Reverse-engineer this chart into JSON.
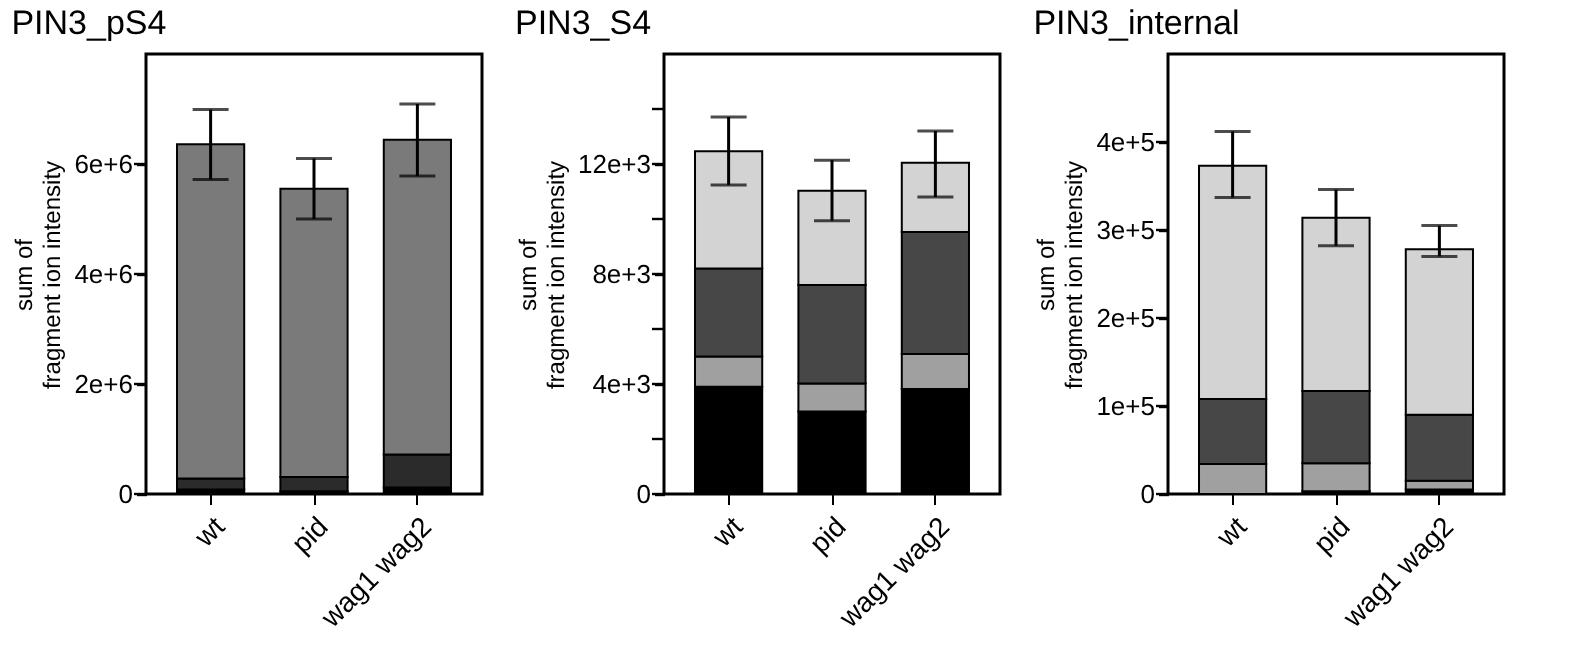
{
  "chart_data": [
    {
      "type": "bar",
      "title": "PIN3_pS4",
      "ylabel": "sum of\nfragment ion intensity",
      "categories": [
        "wt",
        "pid",
        "wag1 wag2"
      ],
      "stacked": true,
      "grid": false,
      "legend": false,
      "ylim": [
        0,
        8000000
      ],
      "yticks": [
        0,
        {
          "value": 2000000,
          "label": "2e+6"
        },
        {
          "value": 4000000,
          "label": "4e+6"
        },
        {
          "value": 6000000,
          "label": "6e+6"
        }
      ],
      "series": [
        {
          "color": "#000000",
          "values": [
            80000,
            50000,
            120000
          ]
        },
        {
          "color": "#2b2b2b",
          "values": [
            200000,
            260000,
            600000
          ]
        },
        {
          "color": "#7a7a7a",
          "values": [
            6080000,
            5240000,
            5720000
          ],
          "errors": [
            [
              5720000,
              6990000
            ],
            [
              5000000,
              6100000
            ],
            [
              5780000,
              7090000
            ]
          ]
        }
      ]
    },
    {
      "type": "bar",
      "title": "PIN3_S4",
      "ylabel": "sum of\nfragment ion intensity",
      "categories": [
        "wt",
        "pid",
        "wag1 wag2"
      ],
      "stacked": true,
      "grid": false,
      "legend": false,
      "ylim": [
        0,
        16000
      ],
      "yticks": [
        0,
        {
          "value": 2000,
          "label": null
        },
        {
          "value": 4000,
          "label": "4e+3"
        },
        {
          "value": 6000,
          "label": null
        },
        {
          "value": 8000,
          "label": "8e+3"
        },
        {
          "value": 10000,
          "label": null
        },
        {
          "value": 12000,
          "label": "12e+3"
        },
        {
          "value": 14000,
          "label": null
        }
      ],
      "series": [
        {
          "color": "#000000",
          "values": [
            3900,
            3000,
            3820
          ]
        },
        {
          "color": "#a0a0a0",
          "values": [
            1100,
            1020,
            1270
          ]
        },
        {
          "color": "#474747",
          "values": [
            3200,
            3580,
            4440
          ]
        },
        {
          "color": "#d3d3d3",
          "values": [
            4260,
            3430,
            2520
          ],
          "errors": [
            [
              11240,
              13710
            ],
            [
              9940,
              12140
            ],
            [
              10800,
              13200
            ]
          ]
        }
      ]
    },
    {
      "type": "bar",
      "title": "PIN3_internal",
      "ylabel": "sum of\nfragment ion intensity",
      "categories": [
        "wt",
        "pid",
        "wag1 wag2"
      ],
      "stacked": true,
      "grid": false,
      "legend": false,
      "ylim": [
        0,
        500000
      ],
      "yticks": [
        0,
        {
          "value": 100000,
          "label": "1e+5"
        },
        {
          "value": 200000,
          "label": "2e+5"
        },
        {
          "value": 300000,
          "label": "3e+5"
        },
        {
          "value": 400000,
          "label": "4e+5"
        }
      ],
      "series": [
        {
          "color": "#000000",
          "values": [
            null,
            3000,
            5000
          ]
        },
        {
          "color": "#a0a0a0",
          "values": [
            34000,
            32000,
            10000
          ]
        },
        {
          "color": "#474747",
          "values": [
            74000,
            82000,
            75000
          ]
        },
        {
          "color": "#d3d3d3",
          "values": [
            265000,
            197000,
            188000
          ],
          "errors": [
            [
              337000,
              412000
            ],
            [
              282000,
              346000
            ],
            [
              270000,
              305000
            ]
          ]
        }
      ]
    }
  ]
}
